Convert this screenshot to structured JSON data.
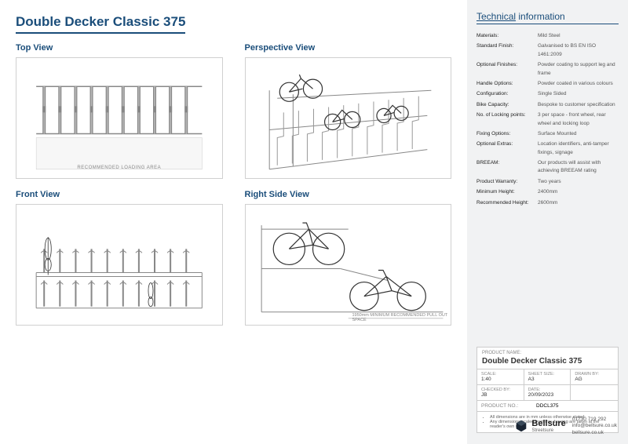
{
  "title": "Double Decker Classic 375",
  "views": {
    "top": {
      "label": "Top View",
      "loading_area": "RECOMMENDED LOADING AREA",
      "rack_count": 10
    },
    "perspective": {
      "label": "Perspective View",
      "rack_count": 10
    },
    "front": {
      "label": "Front View",
      "rack_count": 10
    },
    "right": {
      "label": "Right Side View",
      "dim_note": "1950mm MINIMUM RECOMMENDED PULL OUT SPACE"
    }
  },
  "tech": {
    "heading_underlined": "Technical",
    "heading_rest": " information",
    "specs": [
      {
        "k": "Materials:",
        "v": "Mild Steel"
      },
      {
        "k": "Standard Finish:",
        "v": "Galvanised to BS EN ISO 1461:2009"
      },
      {
        "k": "Optional Finishes:",
        "v": "Powder coating to support leg and frame"
      },
      {
        "k": "Handle Options:",
        "v": "Powder coated in various colours"
      },
      {
        "k": "Configuration:",
        "v": "Single Sided"
      },
      {
        "k": "Bike Capacity:",
        "v": "Bespoke to customer specification"
      },
      {
        "k": "No. of Locking points:",
        "v": "3 per space - front wheel, rear wheel and locking loop"
      },
      {
        "k": "Fixing Options:",
        "v": "Surface Mounted"
      },
      {
        "k": "Optional Extras:",
        "v": "Location identifiers, anti-tamper fixings, signage"
      },
      {
        "k": "BREEAM:",
        "v": "Our products will assist with achieving BREEAM rating"
      },
      {
        "k": "Product Warranty:",
        "v": "Two years"
      },
      {
        "k": "Minimum Height:",
        "v": "2400mm"
      },
      {
        "k": "Recommended Height:",
        "v": "2600mm"
      }
    ]
  },
  "title_block": {
    "product_name_label": "PRODUCT NAME:",
    "product_name": "Double Decker Classic 375",
    "cells": [
      {
        "k": "SCALE:",
        "v": "1:40"
      },
      {
        "k": "SHEET SIZE:",
        "v": "A3"
      },
      {
        "k": "DRAWN BY:",
        "v": "AG"
      },
      {
        "k": "CHECKED BY:",
        "v": "JB"
      },
      {
        "k": "DATE:",
        "v": "20/09/2023"
      },
      {
        "k": "",
        "v": ""
      }
    ],
    "product_no_label": "PRODUCT NO.:",
    "product_no": "DDCL375",
    "notes": [
      "All dimensions are in mm unless otherwise stated",
      "Any dimensions scaled from this drawing are taken at the reader's own risk"
    ]
  },
  "company": {
    "name": "Bellsure",
    "sub": "Streetsure",
    "phone": "01730 719 292",
    "email": "info@bellsure.co.uk",
    "web": "bellsure.co.uk",
    "logo_color": "#1a2533"
  },
  "colors": {
    "heading": "#1a4d7a",
    "border": "#d0d0d0",
    "side_bg": "#f1f2f3",
    "rack_stroke": "#888888",
    "bike_stroke": "#333333"
  }
}
